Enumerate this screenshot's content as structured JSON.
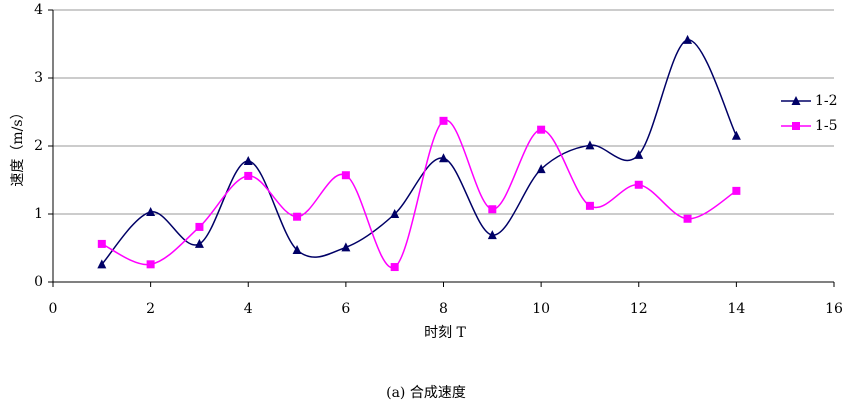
{
  "chart_data": {
    "type": "line",
    "x_label": "时刻 T",
    "y_label": "速度（m/s）",
    "caption": "(a)  合成速度",
    "x": [
      1,
      2,
      3,
      4,
      5,
      6,
      7,
      8,
      9,
      10,
      11,
      12,
      13,
      14
    ],
    "series": [
      {
        "name": "1-2",
        "color": "#000066",
        "marker": "triangle",
        "values": [
          0.26,
          1.03,
          0.56,
          1.78,
          0.47,
          0.51,
          1.0,
          1.82,
          0.69,
          1.66,
          2.01,
          1.87,
          3.56,
          2.15
        ]
      },
      {
        "name": "1-5",
        "color": "#ff00ff",
        "marker": "square",
        "values": [
          0.56,
          0.26,
          0.81,
          1.56,
          0.96,
          1.57,
          0.22,
          2.37,
          1.07,
          2.24,
          1.12,
          1.43,
          0.93,
          1.34
        ]
      }
    ],
    "xlim": [
      0,
      16
    ],
    "xticks": [
      0,
      2,
      4,
      6,
      8,
      10,
      12,
      14,
      16
    ],
    "ylim": [
      0,
      4
    ],
    "yticks": [
      0,
      1,
      2,
      3,
      4
    ],
    "grid": true,
    "smooth": true,
    "legend": "right"
  }
}
